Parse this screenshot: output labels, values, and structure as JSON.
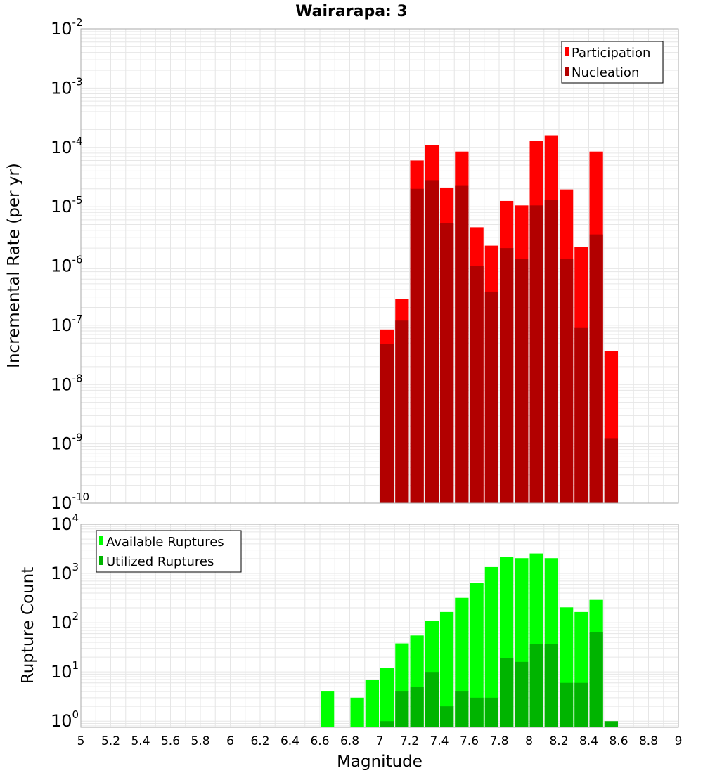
{
  "title": "Wairarapa: 3",
  "x_label": "Magnitude",
  "x_ticks": [
    "5",
    "5.2",
    "5.4",
    "5.6",
    "5.8",
    "6",
    "6.2",
    "6.4",
    "6.6",
    "6.8",
    "7",
    "7.2",
    "7.4",
    "7.6",
    "7.8",
    "8",
    "8.2",
    "8.4",
    "8.6",
    "8.8",
    "9"
  ],
  "colors": {
    "participation": "#ff0000",
    "nucleation": "#b20000",
    "available": "#00ff00",
    "utilized": "#00b400",
    "grid": "#e6e6e6",
    "frame": "#aaaaaa"
  },
  "chart_data": [
    {
      "type": "bar",
      "panel": "top",
      "ylabel": "Incremental Rate (per yr)",
      "yscale": "log",
      "xlim": [
        5,
        9
      ],
      "ylim": [
        1e-10,
        0.01
      ],
      "y_tick_exponents": [
        "-2",
        "-3",
        "-4",
        "-5",
        "-6",
        "-7",
        "-8",
        "-9",
        "-10"
      ],
      "overlay": true,
      "bar_width": 0.1,
      "x": [
        7.0,
        7.1,
        7.2,
        7.3,
        7.4,
        7.5,
        7.6,
        7.7,
        7.8,
        7.9,
        8.0,
        8.1,
        8.2,
        8.3,
        8.4,
        8.5
      ],
      "legend_position": "top-right",
      "series": [
        {
          "name": "Participation",
          "color_key": "participation",
          "values": [
            8.5e-08,
            2.8e-07,
            6e-05,
            0.00011,
            2.1e-05,
            8.5e-05,
            4.5e-06,
            2.2e-06,
            1.25e-05,
            1.05e-05,
            0.00013,
            0.00016,
            1.95e-05,
            2.1e-06,
            8.5e-05,
            3.7e-08
          ]
        },
        {
          "name": "Nucleation",
          "color_key": "nucleation",
          "values": [
            4.8e-08,
            1.2e-07,
            2e-05,
            2.8e-05,
            5.3e-06,
            2.3e-05,
            1e-06,
            3.7e-07,
            2e-06,
            1.3e-06,
            1.05e-05,
            1.3e-05,
            1.3e-06,
            9e-08,
            3.4e-06,
            1.25e-09
          ]
        }
      ]
    },
    {
      "type": "bar",
      "panel": "bottom",
      "ylabel": "Rupture Count",
      "yscale": "log",
      "xlim": [
        5,
        9
      ],
      "ylim": [
        0.75,
        10000
      ],
      "y_tick_exponents": [
        "4",
        "3",
        "2",
        "1",
        "0"
      ],
      "overlay": true,
      "bar_width": 0.1,
      "x": [
        6.6,
        6.8,
        6.9,
        7.0,
        7.1,
        7.2,
        7.3,
        7.4,
        7.5,
        7.6,
        7.7,
        7.8,
        7.9,
        8.0,
        8.1,
        8.2,
        8.3,
        8.4,
        8.5
      ],
      "legend_position": "top-left",
      "series": [
        {
          "name": "Available Ruptures",
          "color_key": "available",
          "values": [
            4,
            3,
            7,
            12,
            38,
            55,
            110,
            165,
            320,
            640,
            1350,
            2200,
            2050,
            2550,
            2050,
            205,
            165,
            290,
            0
          ]
        },
        {
          "name": "Utilized Ruptures",
          "color_key": "utilized",
          "values": [
            0,
            0,
            0,
            1,
            4,
            5,
            10,
            2,
            4,
            3,
            3,
            19,
            16,
            37,
            37,
            6,
            6,
            65,
            1
          ]
        }
      ]
    }
  ]
}
